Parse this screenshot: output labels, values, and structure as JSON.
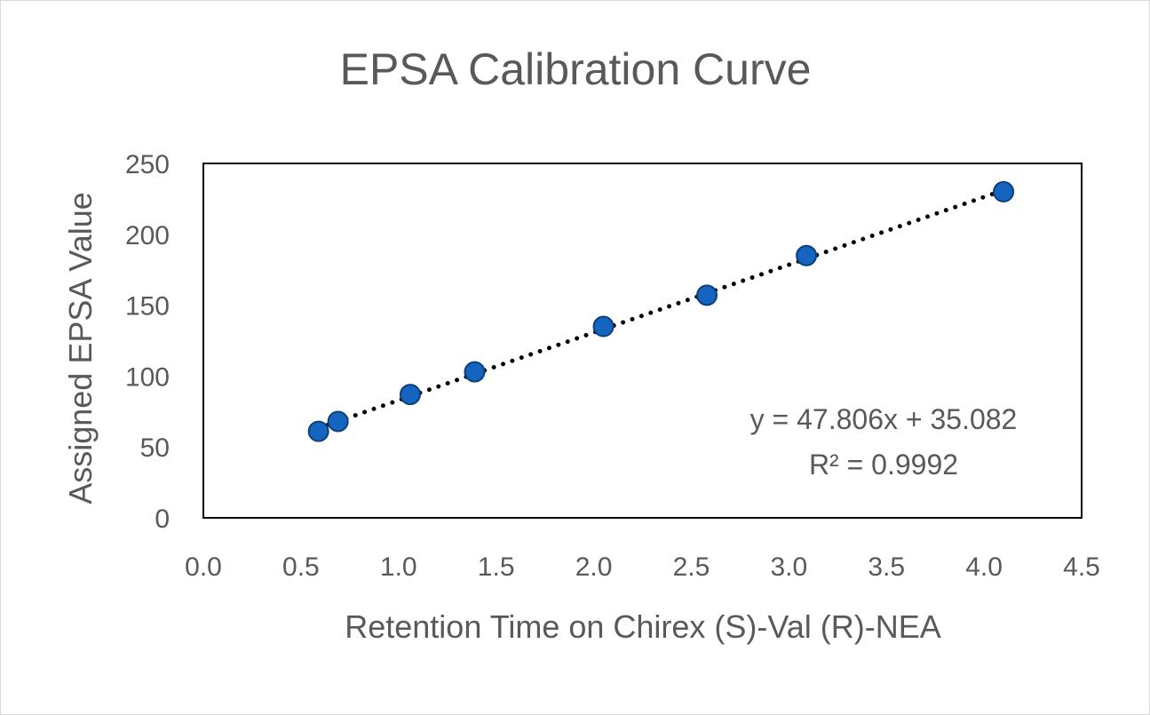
{
  "chart_data": {
    "type": "scatter",
    "title": "EPSA Calibration Curve",
    "xlabel": "Retention Time on Chirex (S)-Val (R)-NEA",
    "ylabel": "Assigned EPSA Value",
    "xlim": [
      0,
      4.5
    ],
    "ylim": [
      0,
      250
    ],
    "x_ticks": [
      "0.0",
      "0.5",
      "1.0",
      "1.5",
      "2.0",
      "2.5",
      "3.0",
      "3.5",
      "4.0",
      "4.5"
    ],
    "y_ticks": [
      "0",
      "50",
      "100",
      "150",
      "200",
      "250"
    ],
    "grid": false,
    "legend": "none",
    "points": [
      {
        "x": 0.59,
        "y": 61
      },
      {
        "x": 0.69,
        "y": 68
      },
      {
        "x": 1.06,
        "y": 87
      },
      {
        "x": 1.39,
        "y": 103
      },
      {
        "x": 2.05,
        "y": 135
      },
      {
        "x": 2.58,
        "y": 157
      },
      {
        "x": 3.09,
        "y": 185
      },
      {
        "x": 4.1,
        "y": 230
      }
    ],
    "trendline": {
      "type": "linear",
      "slope": 47.806,
      "intercept": 35.082,
      "style": "dotted",
      "equation_label": "y = 47.806x + 35.082",
      "r2_label": "R² = 0.9992"
    },
    "colors": {
      "marker_fill": "#1565c0",
      "marker_stroke": "#0d3f7a",
      "trendline": "#000000",
      "text": "#595959",
      "axis": "#000000"
    }
  }
}
